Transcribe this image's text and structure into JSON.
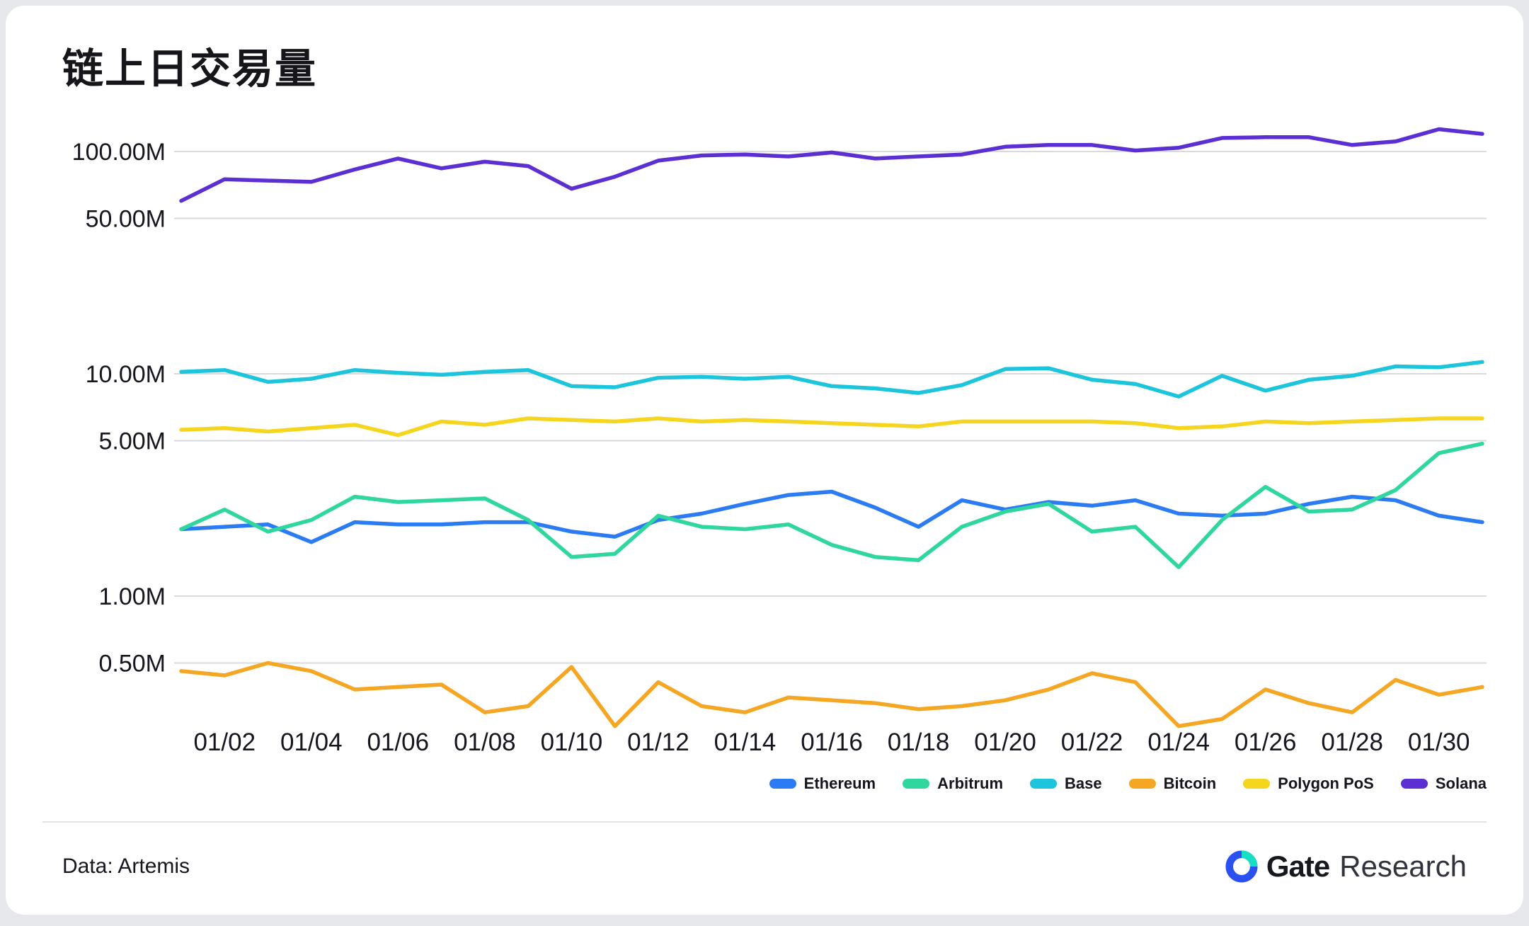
{
  "chart_data": {
    "type": "line",
    "title": "链上日交易量",
    "y_scale": "log",
    "unit": "M",
    "grid": true,
    "legend_position": "bottom-right",
    "x": [
      "01/01",
      "01/02",
      "01/03",
      "01/04",
      "01/05",
      "01/06",
      "01/07",
      "01/08",
      "01/09",
      "01/10",
      "01/11",
      "01/12",
      "01/13",
      "01/14",
      "01/15",
      "01/16",
      "01/17",
      "01/18",
      "01/19",
      "01/20",
      "01/21",
      "01/22",
      "01/23",
      "01/24",
      "01/25",
      "01/26",
      "01/27",
      "01/28",
      "01/29",
      "01/30",
      "01/31"
    ],
    "x_tick_indices": [
      1,
      3,
      5,
      7,
      9,
      11,
      13,
      15,
      17,
      19,
      21,
      23,
      25,
      27,
      29
    ],
    "x_tick_labels": [
      "01/02",
      "01/04",
      "01/06",
      "01/08",
      "01/10",
      "01/12",
      "01/14",
      "01/16",
      "01/18",
      "01/20",
      "01/22",
      "01/24",
      "01/26",
      "01/28",
      "01/30"
    ],
    "y_ticks": [
      100,
      50,
      10,
      5,
      1,
      0.5
    ],
    "y_tick_labels": [
      "100.00M",
      "50.00M",
      "10.00M",
      "5.00M",
      "1.00M",
      "0.50M"
    ],
    "series": [
      {
        "name": "Ethereum",
        "color": "#2b7bf3",
        "values": [
          2.0,
          2.05,
          2.1,
          1.75,
          2.15,
          2.1,
          2.1,
          2.15,
          2.15,
          1.95,
          1.85,
          2.2,
          2.35,
          2.6,
          2.85,
          2.95,
          2.5,
          2.05,
          2.7,
          2.45,
          2.65,
          2.55,
          2.7,
          2.35,
          2.3,
          2.35,
          2.6,
          2.8,
          2.7,
          2.3,
          2.15
        ]
      },
      {
        "name": "Arbitrum",
        "color": "#2fd79e",
        "values": [
          2.0,
          2.45,
          1.95,
          2.2,
          2.8,
          2.65,
          2.7,
          2.75,
          2.2,
          1.5,
          1.55,
          2.3,
          2.05,
          2.0,
          2.1,
          1.7,
          1.5,
          1.45,
          2.05,
          2.4,
          2.6,
          1.95,
          2.05,
          1.35,
          2.2,
          3.1,
          2.4,
          2.45,
          3.0,
          4.4,
          4.85
        ]
      },
      {
        "name": "Base",
        "color": "#1cc4dc",
        "values": [
          10.2,
          10.4,
          9.2,
          9.5,
          10.4,
          10.1,
          9.9,
          10.2,
          10.4,
          8.8,
          8.7,
          9.6,
          9.7,
          9.5,
          9.7,
          8.8,
          8.6,
          8.2,
          8.9,
          10.5,
          10.6,
          9.4,
          9.0,
          7.9,
          9.8,
          8.4,
          9.4,
          9.8,
          10.8,
          10.7,
          11.3
        ]
      },
      {
        "name": "Bitcoin",
        "color": "#f5a623",
        "values": [
          0.46,
          0.44,
          0.5,
          0.46,
          0.38,
          0.39,
          0.4,
          0.3,
          0.32,
          0.48,
          0.26,
          0.41,
          0.32,
          0.3,
          0.35,
          0.34,
          0.33,
          0.31,
          0.32,
          0.34,
          0.38,
          0.45,
          0.41,
          0.26,
          0.28,
          0.38,
          0.33,
          0.3,
          0.42,
          0.36,
          0.39
        ]
      },
      {
        "name": "Polygon PoS",
        "color": "#f6d51f",
        "values": [
          5.6,
          5.7,
          5.5,
          5.7,
          5.9,
          5.3,
          6.1,
          5.9,
          6.3,
          6.2,
          6.1,
          6.3,
          6.1,
          6.2,
          6.1,
          6.0,
          5.9,
          5.8,
          6.1,
          6.1,
          6.1,
          6.1,
          6.0,
          5.7,
          5.8,
          6.1,
          6.0,
          6.1,
          6.2,
          6.3,
          6.3
        ]
      },
      {
        "name": "Solana",
        "color": "#5b2fd1",
        "values": [
          60,
          75,
          74,
          73,
          83,
          93,
          84,
          90,
          86,
          68,
          77,
          91,
          96,
          97,
          95,
          99,
          93,
          95,
          97,
          105,
          107,
          107,
          101,
          104,
          115,
          116,
          116,
          107,
          111,
          126,
          120
        ]
      }
    ]
  },
  "footer": {
    "source": "Data: Artemis",
    "brand_bold": "Gate",
    "brand_light": "Research"
  }
}
